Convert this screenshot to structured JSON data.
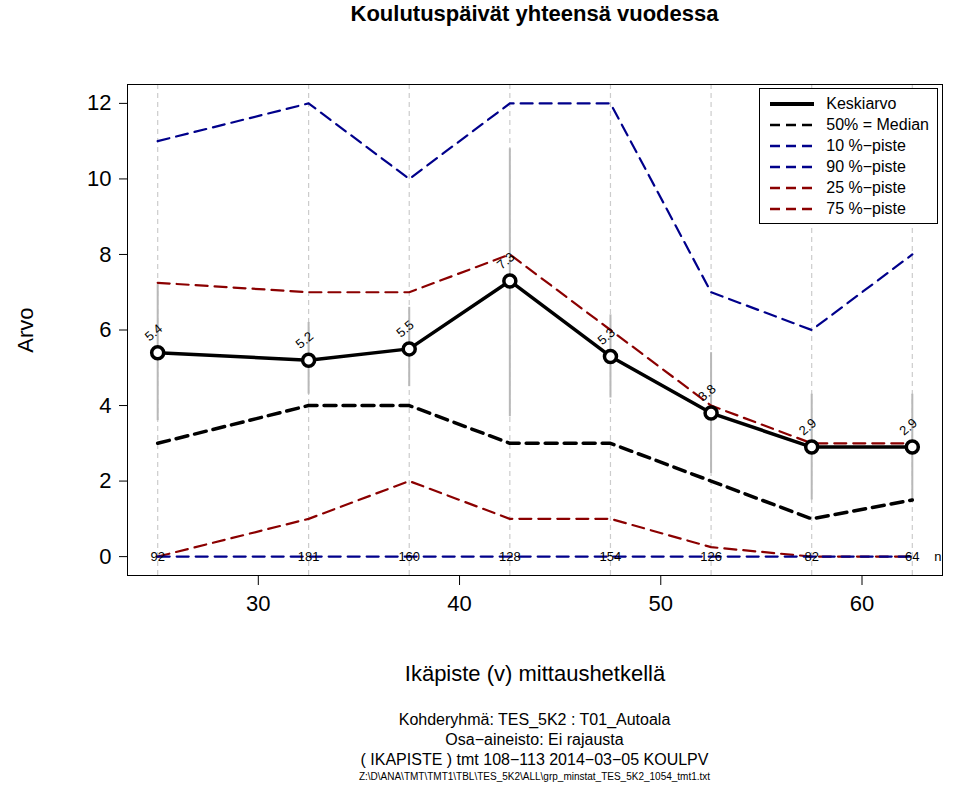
{
  "chart_data": {
    "type": "line",
    "title": "Koulutuspäivät yhteensä vuodessa",
    "x_label": "Ikäpiste (v) mittaushetkellä",
    "y_label": "Arvo",
    "x": [
      25,
      32.5,
      37.5,
      42.5,
      47.5,
      52.5,
      57.5,
      62.5
    ],
    "xlim": [
      23.5,
      64
    ],
    "xticks": [
      30,
      40,
      50,
      60
    ],
    "ylim": [
      -0.5,
      12.5
    ],
    "yticks": [
      0,
      2,
      4,
      6,
      8,
      10,
      12
    ],
    "legend": "top-right",
    "series": [
      {
        "name": "Keskiarvo",
        "color": "#000000",
        "line_style": "solid",
        "marker": "circle",
        "data_labels": true,
        "values": [
          5.4,
          5.2,
          5.5,
          7.3,
          5.3,
          3.8,
          2.9,
          2.9
        ],
        "error_bars": {
          "low": [
            3.6,
            4.3,
            4.5,
            3.7,
            4.2,
            2.2,
            1.5,
            1.5
          ],
          "high": [
            7.2,
            6.2,
            6.6,
            10.8,
            6.4,
            5.4,
            4.3,
            4.3
          ]
        }
      },
      {
        "name": "50% = Median",
        "color": "#000000",
        "line_style": "dashed",
        "values": [
          3,
          4,
          4,
          3,
          3,
          2,
          1,
          1.5
        ]
      },
      {
        "name": "10 %−piste",
        "color": "#00008b",
        "line_style": "dashed",
        "values": [
          0,
          0,
          0,
          0,
          0,
          0,
          0,
          0
        ]
      },
      {
        "name": "90 %−piste",
        "color": "#00008b",
        "line_style": "dashed",
        "values": [
          11,
          12,
          10,
          12,
          12,
          7,
          6,
          8
        ]
      },
      {
        "name": "25 %−piste",
        "color": "#8b0000",
        "line_style": "dashed",
        "values": [
          0,
          1,
          2,
          1,
          1,
          0.25,
          0,
          0
        ]
      },
      {
        "name": "75 %−piste",
        "color": "#8b0000",
        "line_style": "dashed",
        "values": [
          7.25,
          7,
          7,
          8,
          6,
          4,
          3,
          3
        ]
      }
    ],
    "counts": {
      "label": "n",
      "values": [
        92,
        181,
        160,
        128,
        154,
        126,
        82,
        64
      ]
    },
    "captions": [
      "Kohderyhmä:  TES_5K2 : T01_Autoala",
      "Osa−aineisto: Ei rajausta",
      "( IKAPISTE ) tmt 108−113 2014−03−05 KOULPV"
    ],
    "footnote": "Z:\\D\\ANA\\TMT\\TMT1\\TBL\\TES_5K2\\ALL\\grp_minstat_TES_5K2_1054_tmt1.txt"
  }
}
